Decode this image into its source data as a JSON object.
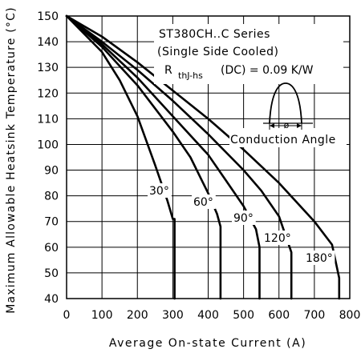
{
  "chart_data": {
    "type": "line",
    "title": "",
    "xlabel": "Average On-state Current (A)",
    "ylabel": "Maximum Allowable Heatsink Temperature (°C)",
    "xlim": [
      0,
      800
    ],
    "ylim": [
      40,
      150
    ],
    "xticks": [
      0,
      100,
      200,
      300,
      400,
      500,
      600,
      700,
      800
    ],
    "yticks": [
      40,
      50,
      60,
      70,
      80,
      90,
      100,
      110,
      120,
      130,
      140,
      150
    ],
    "grid": true,
    "annotations": {
      "series_title": "ST380CH..C Series",
      "cooling": "(Single Side Cooled)",
      "rth_symbol": "R",
      "rth_subscript": "thJ-hs",
      "rth_value": "(DC) = 0.09 K/W",
      "conduction_angle": "Conduction Angle",
      "angle_symbol": "ø"
    },
    "series": [
      {
        "name": "30°",
        "x": [
          0,
          100,
          150,
          200,
          250,
          285,
          300,
          305,
          305
        ],
        "y": [
          150,
          136,
          125,
          111,
          92,
          78,
          71,
          71,
          40
        ]
      },
      {
        "name": "60°",
        "x": [
          0,
          100,
          200,
          300,
          350,
          400,
          425,
          435,
          435
        ],
        "y": [
          150,
          138,
          123,
          105,
          95,
          81,
          73,
          68,
          40
        ]
      },
      {
        "name": "90°",
        "x": [
          0,
          100,
          200,
          300,
          400,
          450,
          500,
          535,
          545,
          545
        ],
        "y": [
          150,
          139,
          126,
          111,
          96,
          86,
          76,
          67,
          60,
          40
        ]
      },
      {
        "name": "120°",
        "x": [
          0,
          100,
          200,
          300,
          400,
          500,
          550,
          600,
          635,
          635
        ],
        "y": [
          150,
          140,
          129,
          117,
          104,
          90,
          82,
          72,
          58,
          40
        ]
      },
      {
        "name": "180°",
        "x": [
          0,
          100,
          200,
          300,
          400,
          500,
          600,
          700,
          750,
          770,
          770
        ],
        "y": [
          150,
          142,
          132,
          121,
          110,
          98,
          85,
          70,
          61,
          48,
          40
        ]
      }
    ]
  }
}
